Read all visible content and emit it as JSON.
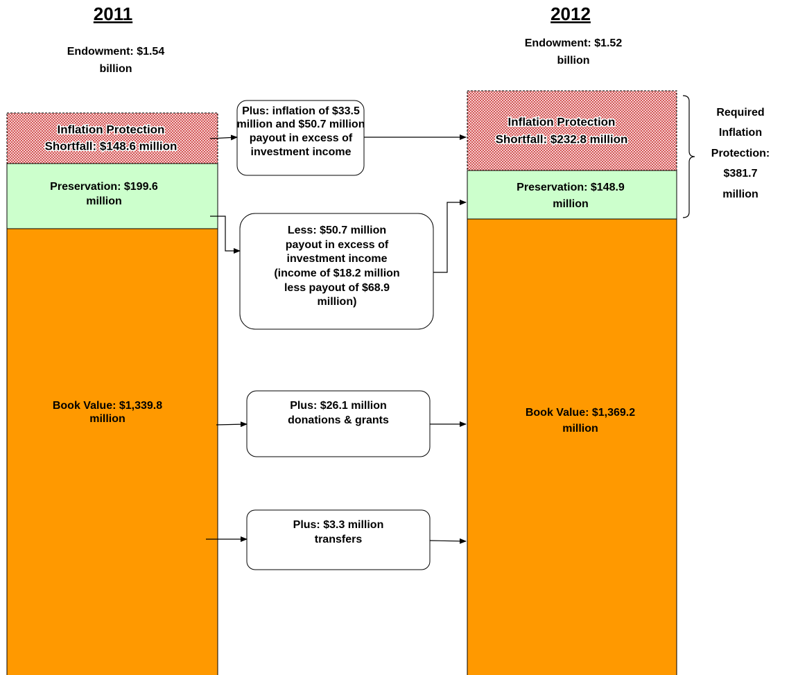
{
  "columns": [
    {
      "year": "2011",
      "endowment": [
        "Endowment: $1.54",
        "billion"
      ],
      "shortfall": [
        "Inflation Protection",
        "Shortfall: $148.6 million"
      ],
      "preservation": [
        "Preservation:  $199.6",
        "million"
      ],
      "book_value": [
        "Book Value: $1,339.8",
        "million"
      ]
    },
    {
      "year": "2012",
      "endowment": [
        "Endowment: $1.52",
        "billion"
      ],
      "shortfall": [
        "Inflation Protection",
        "Shortfall: $232.8 million"
      ],
      "preservation": [
        "Preservation: $148.9",
        "million"
      ],
      "book_value": [
        "Book Value: $1,369.2",
        "million"
      ]
    }
  ],
  "changes": [
    {
      "lines": [
        "Plus: inflation of $33.5",
        "million and $50.7 million",
        "payout in excess of",
        "investment income"
      ],
      "color": "#ff0000"
    },
    {
      "lines": [
        "Less: $50.7 million",
        "payout in excess of",
        "investment income",
        "(income of $18.2 million",
        "less payout of $68.9",
        "million)"
      ],
      "color": "#ff0000"
    },
    {
      "lines": [
        "Plus: $26.1 million",
        "donations & grants"
      ],
      "color": "#0000ff"
    },
    {
      "lines": [
        "Plus: $3.3 million",
        "transfers"
      ],
      "color": "#0000ff"
    }
  ],
  "bracket": [
    "Required",
    "Inflation",
    "Protection:",
    "$381.7",
    "million"
  ]
}
